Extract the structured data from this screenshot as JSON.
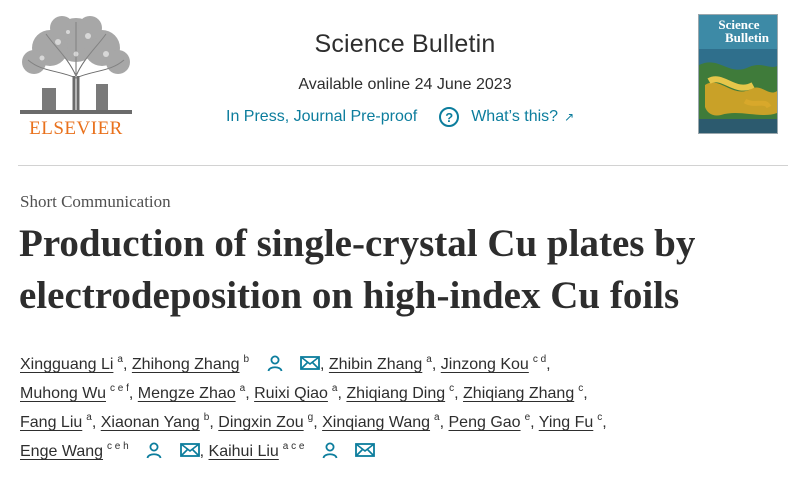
{
  "publisher": {
    "logo_word": "ELSEVIER",
    "logo_icon": "elsevier-tree-icon",
    "accent_color": "#e9711c"
  },
  "journal": {
    "title": "Science Bulletin",
    "available": "Available online 24 June 2023",
    "status_link": "In Press, Journal Pre-proof",
    "help_link": "What’s this?",
    "help_icon": "question-circle-icon",
    "external_icon": "external-arrow-icon",
    "link_color": "#0c7d9d"
  },
  "cover": {
    "title_line1": "Science",
    "title_line2": "Bulletin"
  },
  "article": {
    "type": "Short Communication",
    "title_line1": "Production of single-crystal Cu plates by",
    "title_line2": "electrodeposition on high-index Cu foils"
  },
  "authors": [
    {
      "name": "Xingguang Li",
      "aff": "a"
    },
    {
      "name": "Zhihong Zhang",
      "aff": "b"
    },
    {
      "name": "Zhibin Zhang",
      "aff": "a"
    },
    {
      "name": "Jinzong Kou",
      "aff": "c d"
    },
    {
      "name": "Muhong Wu",
      "aff": "c e f"
    },
    {
      "name": "Mengze Zhao",
      "aff": "a"
    },
    {
      "name": "Ruixi Qiao",
      "aff": "a"
    },
    {
      "name": "Zhiqiang Ding",
      "aff": "c"
    },
    {
      "name": "Zhiqiang Zhang",
      "aff": "c"
    },
    {
      "name": "Fang Liu",
      "aff": "a"
    },
    {
      "name": "Xiaonan Yang",
      "aff": "b"
    },
    {
      "name": "Dingxin Zou",
      "aff": "g"
    },
    {
      "name": "Xinqiang Wang",
      "aff": "a"
    },
    {
      "name": "Peng Gao",
      "aff": "e"
    },
    {
      "name": "Ying Fu",
      "aff": "c"
    },
    {
      "name": "Enge Wang",
      "aff": "c e h"
    },
    {
      "name": "Kaihui Liu",
      "aff": "a c e"
    }
  ],
  "separators": {
    "comma": ","
  },
  "icons": {
    "person": "person-icon",
    "mail": "mail-icon"
  }
}
